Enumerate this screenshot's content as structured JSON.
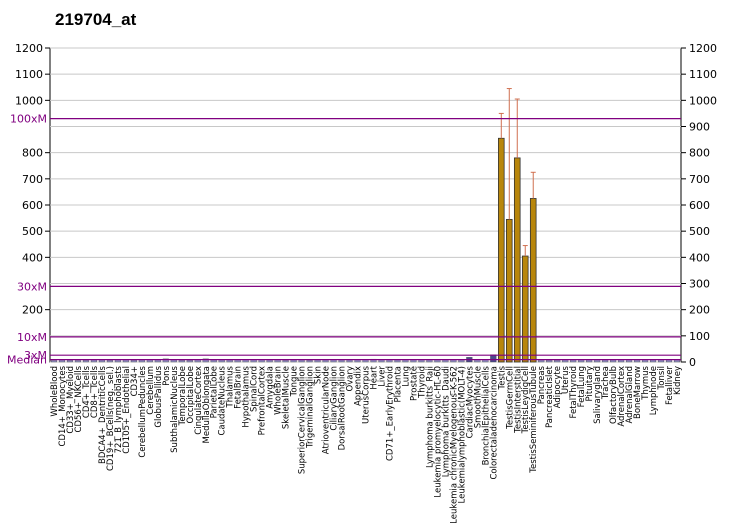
{
  "chart_data": {
    "type": "bar",
    "title": "219704_at",
    "ylim": [
      0,
      1200
    ],
    "y_ticks": [
      0,
      100,
      200,
      300,
      400,
      500,
      600,
      700,
      800,
      900,
      1000,
      1100,
      1200
    ],
    "left_tick_labels": [
      "200",
      "400",
      "500",
      "600",
      "700",
      "800",
      "1000",
      "1100",
      "1200"
    ],
    "left_tick_values": [
      200,
      400,
      500,
      600,
      700,
      800,
      1000,
      1100,
      1200
    ],
    "reference_lines": [
      {
        "label": "100xM",
        "value": 930
      },
      {
        "label": "30xM",
        "value": 289
      },
      {
        "label": "10xM",
        "value": 96
      },
      {
        "label": "3xM",
        "value": 26
      },
      {
        "label": "Median",
        "value": 9
      }
    ],
    "categories": [
      "WholeBlood",
      "CD14+_Monocytes",
      "CD33+_Myeloid",
      "CD56+_NKCells",
      "CD4+_Tcells",
      "CD8+_Tcells",
      "BDCA4+_DentriticCells",
      "CD19+_BCells(neg._sel.)",
      "721_B_lymphoblasts",
      "CD105+_Endothelial",
      "CD34+",
      "CerebellumPeduncles",
      "Cerebellum",
      "GlobusPallidus",
      "Pons",
      "SubthalamicNucleus",
      "TemporalLobe",
      "OccipitalLobe",
      "CingulateCortex",
      "MedullaOblongata",
      "ParietalLobe",
      "CaudateNucleus",
      "Thalamus",
      "FetalBrain",
      "Hypothalamus",
      "SpinalCord",
      "PrefrontalCortex",
      "Amygdala",
      "WholeBrain",
      "SkeletalMuscle",
      "Tongue",
      "SuperiorCervicalGanglion",
      "TrigeminalGanglion",
      "Skin",
      "AtrioventricularNode",
      "CiliaryGanglion",
      "DorsalRootGanglion",
      "Ovary",
      "Appendix",
      "UterusCorpus",
      "Heart",
      "Liver",
      "CD71+_EarlyErythroid",
      "Placenta",
      "Lung",
      "Prostate",
      "Thyroid",
      "Lymphoma burkitts_Raji",
      "Leukemia promyelocytic-HL-60",
      "Lymphoma burkitts_Daudi",
      "Leukemia chronicMyelogenous-K-562",
      "Leukemialymphoblastic(MOLT-4)",
      "CardiacMyocytes",
      "SmoothMuscle",
      "BronchialEpithelialCells",
      "Colorectaladenocarcinoma",
      "Testis",
      "TestisGermCell",
      "TestisInterstitial",
      "TestisLeydigCell",
      "TestisSeminiferousTubule",
      "Pancreas",
      "PancreaticIslet",
      "Adipocyte",
      "Uterus",
      "FetalThyroid",
      "FetalLung",
      "Pituitary",
      "Salivarygland",
      "Trachea",
      "OlfactoryBulb",
      "AdrenalCortex",
      "AdrenalGland",
      "BoneMarrow",
      "Thymus",
      "Lymphnode",
      "Tonsil",
      "Fetalliver",
      "Kidney"
    ],
    "series": [
      {
        "values": [
          6,
          8,
          7,
          6,
          7,
          8,
          8,
          7,
          9,
          10,
          7,
          8,
          9,
          10,
          12,
          8,
          7,
          7,
          9,
          12,
          8,
          8,
          8,
          9,
          9,
          10,
          9,
          8,
          9,
          7,
          8,
          8,
          7,
          8,
          8,
          9,
          8,
          8,
          10,
          10,
          11,
          10,
          9,
          8,
          9,
          9,
          10,
          8,
          9,
          8,
          9,
          8,
          18,
          10,
          10,
          28,
          855,
          545,
          780,
          405,
          625,
          8,
          7,
          7,
          8,
          8,
          9,
          10,
          9,
          8,
          8,
          10,
          9,
          8,
          9,
          8,
          9,
          9,
          8
        ],
        "errors": [
          0,
          0,
          0,
          0,
          0,
          0,
          0,
          0,
          0,
          0,
          0,
          0,
          0,
          0,
          0,
          0,
          0,
          0,
          0,
          0,
          0,
          0,
          0,
          0,
          0,
          0,
          0,
          0,
          0,
          0,
          0,
          0,
          0,
          0,
          0,
          0,
          0,
          0,
          0,
          0,
          0,
          0,
          0,
          0,
          0,
          0,
          0,
          0,
          0,
          0,
          0,
          0,
          0,
          0,
          0,
          0,
          95,
          500,
          225,
          40,
          100,
          0,
          0,
          0,
          0,
          0,
          0,
          0,
          0,
          0,
          0,
          0,
          0,
          0,
          0,
          0,
          0,
          0,
          0
        ],
        "colors": {
          "default": "#b8860b",
          "highlight": "#4b4b8b",
          "low_bar": "#9090c0",
          "error": "#d07050"
        }
      }
    ],
    "highlight_index": [
      52,
      55
    ],
    "colors": {
      "reference_line": "#800080",
      "median_text": "#800080",
      "grid": "#c8c8c8",
      "axis": "#000000"
    }
  }
}
